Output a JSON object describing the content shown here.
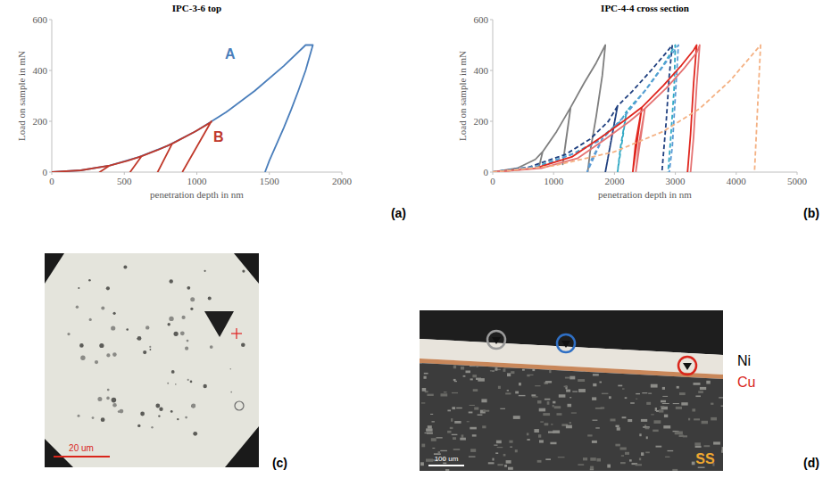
{
  "chart_data": [
    {
      "type": "line",
      "title": "IPC-3-6 top",
      "x_label": "penetration depth in nm",
      "y_label": "Load on sample in mN",
      "xlim": [
        0,
        2000
      ],
      "xticks": [
        0,
        500,
        1000,
        1500,
        2000
      ],
      "ylim": [
        0,
        600
      ],
      "yticks": [
        0,
        200,
        400,
        600
      ],
      "grid": false,
      "series": [
        {
          "color": "#4a7ebb",
          "line_style": "solid",
          "x": [
            0,
            200,
            400,
            600,
            800,
            1000,
            1200,
            1400,
            1600,
            1750,
            1800,
            1750,
            1700,
            1650,
            1600,
            1550,
            1500,
            1470
          ],
          "values": [
            0,
            7,
            26,
            59,
            104,
            163,
            235,
            320,
            418,
            500,
            500,
            400,
            320,
            245,
            175,
            110,
            45,
            0
          ]
        },
        {
          "color": "#c0392b",
          "line_style": "solid",
          "x": [
            0,
            200,
            400,
            330,
            400,
            520,
            620,
            540,
            620,
            730,
            830,
            730,
            830,
            980,
            1100,
            1100,
            900
          ],
          "values": [
            0,
            7,
            26,
            0,
            26,
            44,
            63,
            0,
            63,
            87,
            112,
            0,
            112,
            157,
            197,
            200,
            0
          ]
        }
      ],
      "annotations": [
        {
          "text": "A",
          "x": 1230,
          "y": 446,
          "color": "#4a7ebb"
        },
        {
          "text": "B",
          "x": 1150,
          "y": 120,
          "color": "#c0392b"
        }
      ],
      "panel_label": "(a)"
    },
    {
      "type": "line",
      "title": "IPC-4-4 cross section",
      "x_label": "penetration depth in nm",
      "y_label": "Load on sample in mN",
      "xlim": [
        0,
        5000
      ],
      "xticks": [
        0,
        1000,
        2000,
        3000,
        4000,
        5000
      ],
      "ylim": [
        0,
        600
      ],
      "yticks": [
        0,
        200,
        400,
        600
      ],
      "grid": false,
      "series": [
        {
          "color": "#7f7f7f",
          "line_style": "solid",
          "x": [
            0,
            400,
            700,
            820,
            760,
            820,
            1050,
            1280,
            1200,
            1150,
            1280,
            1500,
            1700,
            1850,
            1800,
            1700,
            1600,
            1560
          ],
          "values": [
            0,
            15,
            50,
            80,
            20,
            80,
            160,
            255,
            120,
            30,
            255,
            350,
            430,
            500,
            380,
            220,
            80,
            0
          ]
        },
        {
          "color": "#1f3f7f",
          "line_style": "dashed",
          "x": [
            0,
            600,
            1200,
            1600,
            1900,
            2050,
            1950,
            1850,
            2050,
            2300,
            2600,
            2850,
            2950,
            2900,
            2850,
            2800,
            2780
          ],
          "values": [
            0,
            20,
            70,
            130,
            200,
            260,
            130,
            0,
            260,
            320,
            400,
            470,
            500,
            380,
            200,
            60,
            0
          ]
        },
        {
          "color": "#31a9c4",
          "line_style": "dashed",
          "x": [
            0,
            700,
            1300,
            1700,
            2100,
            2200,
            2100,
            2050,
            2200,
            2500,
            2800,
            3000,
            2980,
            2920,
            2880
          ],
          "values": [
            0,
            20,
            70,
            120,
            200,
            240,
            100,
            0,
            240,
            320,
            420,
            500,
            330,
            120,
            0
          ]
        },
        {
          "color": "#5b9bd5",
          "line_style": "dashed",
          "x": [
            0,
            800,
            1400,
            1800,
            1600,
            1550,
            1800,
            2200,
            2600,
            2900,
            3050,
            3000,
            2950,
            2900
          ],
          "values": [
            0,
            25,
            80,
            130,
            40,
            0,
            130,
            230,
            350,
            450,
            500,
            300,
            100,
            0
          ]
        },
        {
          "color": "#e0261e",
          "line_style": "solid",
          "x": [
            0,
            700,
            1300,
            1800,
            2200,
            2450,
            2350,
            2300,
            2450,
            2800,
            3100,
            3300,
            3350,
            3300,
            3250,
            3200
          ],
          "values": [
            0,
            15,
            60,
            140,
            210,
            255,
            120,
            0,
            255,
            340,
            420,
            480,
            500,
            350,
            150,
            0
          ]
        },
        {
          "color": "#e57373",
          "line_style": "solid",
          "x": [
            0,
            800,
            1400,
            1850,
            2250,
            2500,
            2400,
            2350,
            2500,
            2850,
            3150,
            3350,
            3400,
            3350,
            3300,
            3250
          ],
          "values": [
            0,
            15,
            55,
            130,
            200,
            250,
            110,
            0,
            250,
            330,
            410,
            470,
            500,
            340,
            140,
            0
          ]
        },
        {
          "color": "#f4b183",
          "line_style": "dashed",
          "x": [
            0,
            1000,
            2000,
            2800,
            3400,
            3900,
            4400,
            4350,
            4300
          ],
          "values": [
            0,
            25,
            80,
            160,
            250,
            360,
            500,
            250,
            0
          ]
        }
      ],
      "panel_label": "(b)"
    }
  ],
  "micrographs": [
    {
      "panel_label": "(c)",
      "scale_bar": "20 um"
    },
    {
      "panel_label": "(d)",
      "scale_bar": "100 um",
      "labels": [
        {
          "text": "Ni",
          "color": "#000000"
        },
        {
          "text": "Cu",
          "color": "#d9261c"
        },
        {
          "text": "SS",
          "color": "#f0a830"
        }
      ]
    }
  ]
}
